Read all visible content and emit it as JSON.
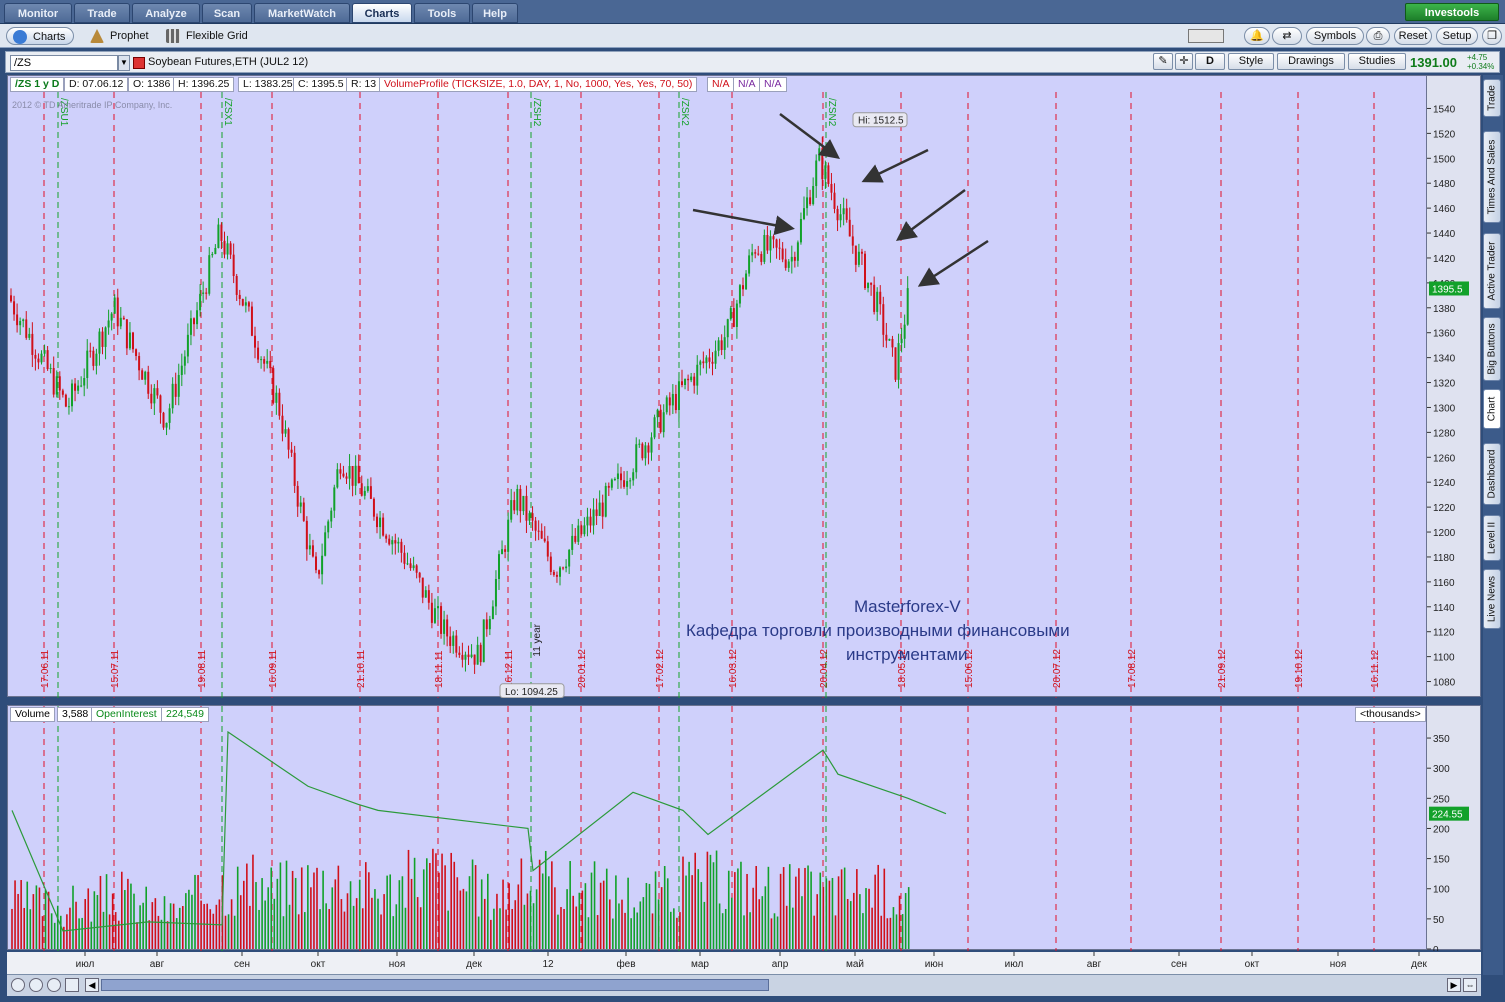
{
  "menu": {
    "tabs": [
      {
        "label": "Monitor",
        "active": false
      },
      {
        "label": "Trade",
        "active": false
      },
      {
        "label": "Analyze",
        "active": false
      },
      {
        "label": "Scan",
        "active": false
      },
      {
        "label": "MarketWatch",
        "active": false
      },
      {
        "label": "Charts",
        "active": true
      },
      {
        "label": "Tools",
        "active": false
      },
      {
        "label": "Help",
        "active": false
      }
    ],
    "brand": "Investools"
  },
  "subtabs": {
    "charts": "Charts",
    "prophet": "Prophet",
    "flexible_grid": "Flexible Grid"
  },
  "toolbar": {
    "symbols": "Symbols",
    "reset": "Reset",
    "setup": "Setup"
  },
  "symbol_bar": {
    "symbol": "/ZS",
    "description": "Soybean Futures,ETH (JUL2 12)",
    "aggregation": "D",
    "style": "Style",
    "drawings": "Drawings",
    "studies": "Studies",
    "last_price": "1391.00",
    "change": "+4.75",
    "change_pct": "+0.34%"
  },
  "chart_header": {
    "name": "/ZS 1 y D",
    "date": "D: 07.06.12",
    "open": "O: 1386",
    "high": "H: 1396.25",
    "low": "L: 1383.25",
    "close": "C: 1395.5",
    "range": "R: 13",
    "study": "VolumeProfile (TICKSIZE, 1.0, DAY, 1, No, 1000, Yes, Yes, 70, 50)",
    "na1": "N/A",
    "na2": "N/A",
    "na3": "N/A"
  },
  "copyright": "2012 © TD Ameritrade IP Company, Inc.",
  "volume_header": {
    "volume_label": "Volume",
    "volume_value": "3,588",
    "oi_label": "OpenInterest",
    "oi_value": "224,549",
    "units": "<thousands>"
  },
  "annotations": {
    "hi": "Hi: 1512.5",
    "lo": "Lo: 1094.25",
    "year_marker": "11 year",
    "watermark_line1": "Masterforex-V",
    "watermark_line2": "Кафедра торговли производными финансовыми",
    "watermark_line3": "инструментами"
  },
  "price_marker": "1395.5",
  "oi_marker": "224.55",
  "expiry_labels": [
    {
      "label": "/ZSU1"
    },
    {
      "label": "/ZSX1"
    },
    {
      "label": "/ZSH2"
    },
    {
      "label": "/ZSK2"
    },
    {
      "label": "/ZSN2"
    }
  ],
  "date_labels": [
    "17.06.11",
    "15.07.11",
    "19.08.11",
    "16.09.11",
    "21.10.11",
    "18.11.11",
    "16.12.11",
    "20.01.12",
    "17.02.12",
    "16.03.12",
    "20.04.12",
    "18.05.12",
    "15.06.12",
    "20.07.12",
    "17.08.12",
    "21.09.12",
    "19.10.12",
    "16.11.12"
  ],
  "month_labels": [
    "июл",
    "авг",
    "сен",
    "окт",
    "ноя",
    "дек",
    "12",
    "фев",
    "мар",
    "апр",
    "май",
    "июн",
    "июл",
    "авг",
    "сен",
    "окт",
    "ноя",
    "дек"
  ],
  "price_ticks": [
    "1540",
    "1520",
    "1500",
    "1480",
    "1460",
    "1440",
    "1420",
    "1400",
    "1380",
    "1360",
    "1340",
    "1320",
    "1300",
    "1280",
    "1260",
    "1240",
    "1220",
    "1200",
    "1180",
    "1160",
    "1140",
    "1120",
    "1100",
    "1080"
  ],
  "volume_ticks": [
    "350",
    "300",
    "250",
    "200",
    "150",
    "100",
    "50",
    "0"
  ],
  "sidebar_tabs": [
    "Trade",
    "Times And Sales",
    "Active Trader",
    "Big Buttons",
    "Chart",
    "Dashboard",
    "Level II",
    "Live News"
  ],
  "colors": {
    "up": "#12a12a",
    "down": "#d0101a",
    "background": "#cfd0fb",
    "oi_line": "#2b9a3a",
    "accent": "#0f7c1a"
  },
  "chart_data": [
    {
      "type": "candlestick",
      "title": "/ZS 1 y D",
      "ylim": [
        1070,
        1550
      ],
      "x_range": [
        "2011-06-07",
        "2012-12-31"
      ],
      "approx_close_path": [
        {
          "x": "2011-06-07",
          "y": 1390
        },
        {
          "x": "2011-07-01",
          "y": 1300
        },
        {
          "x": "2011-07-20",
          "y": 1380
        },
        {
          "x": "2011-08-10",
          "y": 1290
        },
        {
          "x": "2011-09-01",
          "y": 1440
        },
        {
          "x": "2011-09-25",
          "y": 1300
        },
        {
          "x": "2011-10-10",
          "y": 1160
        },
        {
          "x": "2011-10-20",
          "y": 1260
        },
        {
          "x": "2011-11-15",
          "y": 1180
        },
        {
          "x": "2011-12-01",
          "y": 1120
        },
        {
          "x": "2011-12-15",
          "y": 1100
        },
        {
          "x": "2011-12-30",
          "y": 1230
        },
        {
          "x": "2012-01-15",
          "y": 1170
        },
        {
          "x": "2012-02-10",
          "y": 1240
        },
        {
          "x": "2012-03-01",
          "y": 1300
        },
        {
          "x": "2012-03-25",
          "y": 1360
        },
        {
          "x": "2012-04-05",
          "y": 1430
        },
        {
          "x": "2012-04-20",
          "y": 1420
        },
        {
          "x": "2012-05-01",
          "y": 1500
        },
        {
          "x": "2012-05-15",
          "y": 1430
        },
        {
          "x": "2012-05-25",
          "y": 1380
        },
        {
          "x": "2012-06-01",
          "y": 1330
        },
        {
          "x": "2012-06-07",
          "y": 1395.5
        }
      ],
      "hi": 1512.5,
      "lo": 1094.25
    },
    {
      "type": "bar",
      "title": "Volume / OpenInterest",
      "ylim": [
        0,
        370
      ],
      "series": [
        {
          "name": "Volume",
          "values": [
            80,
            70,
            90,
            60,
            110,
            100,
            120,
            95,
            130,
            90,
            110,
            100,
            85,
            115,
            105,
            95,
            100,
            90
          ]
        },
        {
          "name": "OpenInterest",
          "values": [
            230,
            30,
            45,
            40,
            360,
            270,
            240,
            230,
            210,
            200,
            130,
            260,
            230,
            190,
            330,
            290,
            250,
            224.55
          ]
        }
      ]
    }
  ]
}
